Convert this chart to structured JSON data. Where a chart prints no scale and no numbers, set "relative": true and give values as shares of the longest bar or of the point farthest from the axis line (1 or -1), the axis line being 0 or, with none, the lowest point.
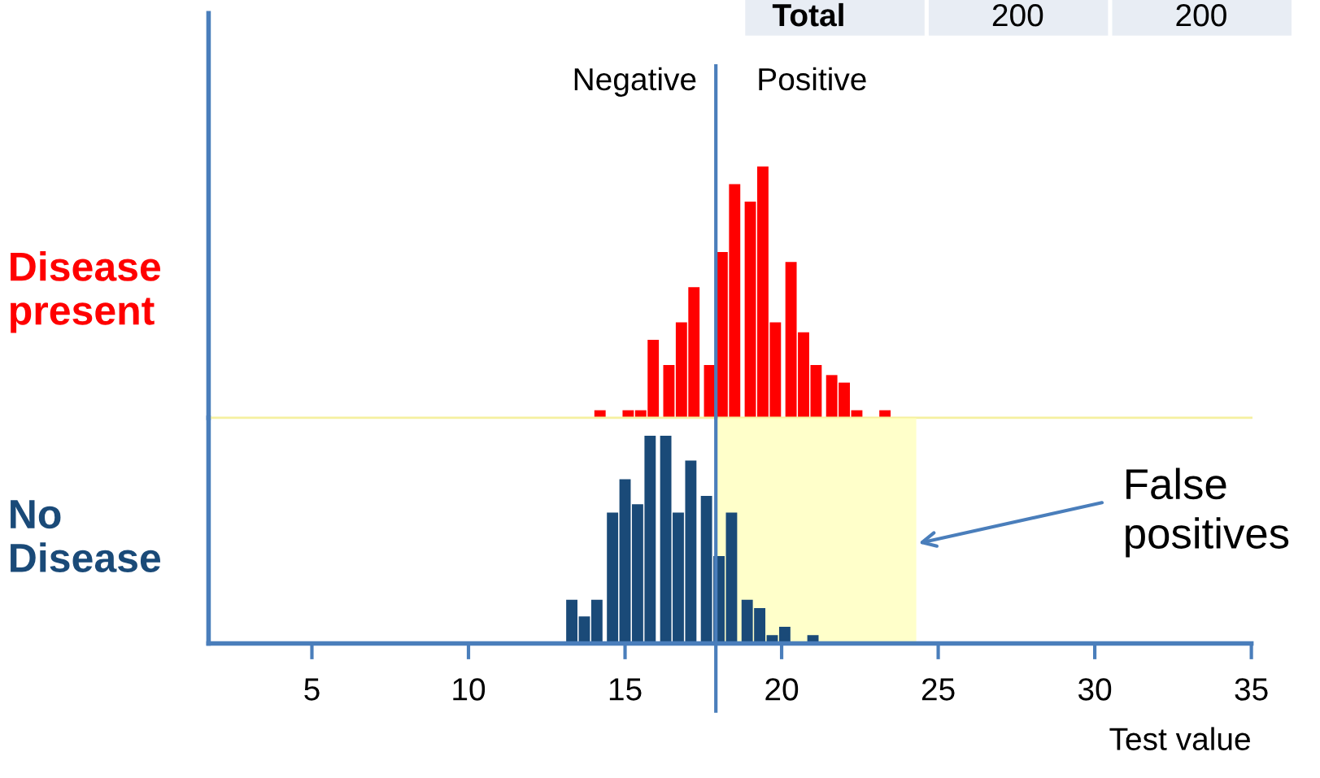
{
  "chart_data": [
    {
      "type": "bar",
      "relative": true,
      "xlim": [
        1.7,
        35
      ],
      "grid": false,
      "series": [
        {
          "name": "Disease\npresent",
          "color": "#ff0000",
          "x": [
            14.2,
            15.1,
            15.5,
            15.9,
            16.4,
            16.8,
            17.2,
            17.7,
            18.1,
            18.5,
            19.0,
            19.4,
            19.8,
            20.3,
            20.7,
            21.1,
            21.6,
            22.0,
            22.4,
            23.3
          ],
          "values": [
            0.03,
            0.03,
            0.03,
            0.31,
            0.21,
            0.38,
            0.52,
            0.21,
            0.66,
            0.93,
            0.86,
            1.0,
            0.38,
            0.62,
            0.34,
            0.21,
            0.17,
            0.14,
            0.03,
            0.03
          ]
        }
      ],
      "ref_lines": [
        {
          "axis": "x",
          "value": 17.9,
          "color": "#4a7ebb"
        }
      ],
      "annotations": [
        "Negative",
        "Positive",
        "Total",
        "200",
        "200"
      ]
    },
    {
      "type": "bar",
      "relative": true,
      "xlabel": "Test value",
      "xlim": [
        1.7,
        35
      ],
      "xticks": [
        5,
        10,
        15,
        20,
        25,
        30,
        35
      ],
      "grid": false,
      "series": [
        {
          "name": "No\nDisease",
          "color": "#1a4a78",
          "x": [
            13.3,
            13.7,
            14.1,
            14.6,
            15.0,
            15.4,
            15.8,
            16.3,
            16.7,
            17.1,
            17.6,
            18.0,
            18.4,
            18.9,
            19.3,
            19.7,
            20.1,
            21.0
          ],
          "values": [
            0.21,
            0.13,
            0.21,
            0.63,
            0.79,
            0.67,
            1.0,
            1.0,
            0.63,
            0.88,
            0.71,
            0.42,
            0.63,
            0.21,
            0.17,
            0.04,
            0.08,
            0.04
          ]
        }
      ],
      "ref_lines": [
        {
          "axis": "x",
          "value": 17.9,
          "color": "#4a7ebb"
        }
      ],
      "bands": [
        {
          "axis": "x",
          "from": 17.9,
          "to": 24.3,
          "color": "#ffffb3"
        }
      ],
      "annotations": [
        "False\npositives"
      ]
    }
  ]
}
